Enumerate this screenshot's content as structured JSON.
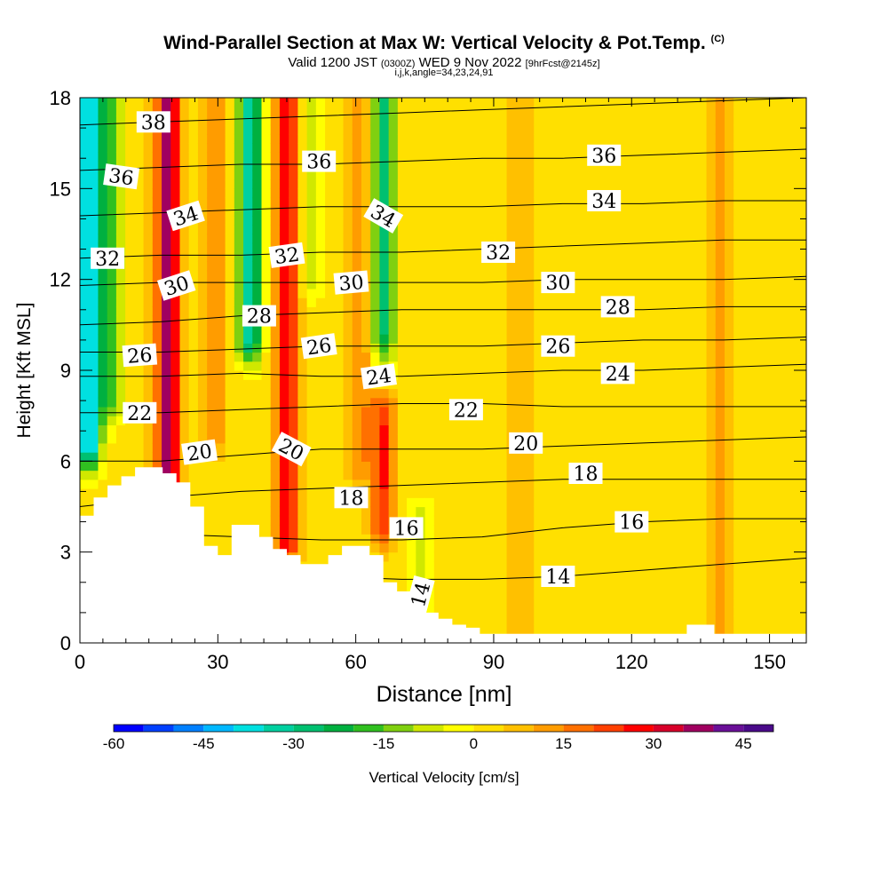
{
  "header": {
    "title": "Wind-Parallel Section at Max W: Vertical Velocity & Pot.Temp.",
    "title_mark": "(C)",
    "valid_prefix": "Valid 1200 JST",
    "valid_utc": "(0300Z)",
    "valid_date": "WED 9 Nov 2022",
    "forecast": "[9hrFcst@2145z]",
    "indices": "i,j,k,angle=34,23,24,91"
  },
  "chart_data": {
    "type": "heatmap",
    "xlabel": "Distance [nm]",
    "ylabel": "Height [Kft MSL]",
    "xlim": [
      0,
      158
    ],
    "ylim": [
      0,
      18
    ],
    "xticks": [
      0,
      30,
      60,
      90,
      120,
      150
    ],
    "xtick_labels": [
      "0",
      "30",
      "60",
      "90",
      "120",
      "150"
    ],
    "yticks": [
      0,
      3,
      6,
      9,
      12,
      15,
      18
    ],
    "ytick_labels": [
      "0",
      "3",
      "6",
      "9",
      "12",
      "15",
      "18"
    ],
    "colorbar": {
      "label": "Vertical Velocity [cm/s]",
      "min": -60,
      "max": 50,
      "step": 5,
      "tick_values": [
        -60,
        -45,
        -30,
        -15,
        0,
        15,
        30,
        45
      ],
      "tick_labels": [
        "-60",
        "-45",
        "-30",
        "-15",
        "0",
        "15",
        "30",
        "45"
      ],
      "colors": [
        "#0000ff",
        "#0040ff",
        "#0080ff",
        "#00b8ff",
        "#00e0e0",
        "#00d0a0",
        "#00c070",
        "#00b040",
        "#30c020",
        "#80d010",
        "#d0e800",
        "#ffff00",
        "#ffe000",
        "#ffc000",
        "#ff9c00",
        "#ff7000",
        "#ff4000",
        "#ff0000",
        "#d8002a",
        "#a00060",
        "#6a1098",
        "#4a0a8a"
      ]
    },
    "vertical_velocity_features": [
      {
        "x": 2,
        "z_range": [
          6.5,
          18
        ],
        "w": -45
      },
      {
        "x": 7,
        "z_range": [
          8,
          18
        ],
        "w": -20
      },
      {
        "x": 19,
        "z_range": [
          5,
          18
        ],
        "w": 35
      },
      {
        "x": 29,
        "z_range": [
          7,
          18
        ],
        "w": 12
      },
      {
        "x": 37,
        "z_range": [
          10,
          18
        ],
        "w": -35
      },
      {
        "x": 45,
        "z_range": [
          3.5,
          18
        ],
        "w": 28
      },
      {
        "x": 50,
        "z_range": [
          12,
          18
        ],
        "w": -10
      },
      {
        "x": 61,
        "z_range": [
          6,
          18
        ],
        "w": 12
      },
      {
        "x": 66,
        "z_range": [
          9,
          18
        ],
        "w": -32
      },
      {
        "x": 66,
        "z_range": [
          4,
          9
        ],
        "w": 22
      },
      {
        "x": 74,
        "z_range": [
          0.5,
          4
        ],
        "w": -12
      },
      {
        "x": 95,
        "z_range": [
          0.5,
          18
        ],
        "w": 7
      },
      {
        "x": 140,
        "z_range": [
          0.5,
          18
        ],
        "w": 8
      }
    ],
    "theta_contours": [
      {
        "level": 14,
        "z": [
          3.0,
          2.8,
          2.5,
          2.2,
          2.1,
          2.1,
          2.2,
          2.4,
          2.6,
          2.8
        ]
      },
      {
        "level": 16,
        "z": [
          3.6,
          3.6,
          3.5,
          3.4,
          3.4,
          3.5,
          3.8,
          4.0,
          4.1,
          4.1
        ]
      },
      {
        "level": 18,
        "z": [
          4.5,
          4.8,
          5.0,
          5.1,
          5.2,
          5.3,
          5.4,
          5.4,
          5.4,
          5.4
        ]
      },
      {
        "level": 20,
        "z": [
          6.0,
          6.0,
          6.2,
          6.4,
          6.4,
          6.4,
          6.5,
          6.6,
          6.7,
          6.8
        ]
      },
      {
        "level": 22,
        "z": [
          7.6,
          7.6,
          7.7,
          7.8,
          7.9,
          7.9,
          7.8,
          7.8,
          7.8,
          7.8
        ]
      },
      {
        "level": 24,
        "z": [
          8.8,
          8.8,
          8.9,
          8.8,
          8.8,
          8.9,
          9.0,
          9.0,
          9.1,
          9.2
        ]
      },
      {
        "level": 26,
        "z": [
          9.6,
          9.6,
          9.7,
          9.8,
          9.8,
          9.8,
          9.9,
          10.0,
          10.0,
          10.1
        ]
      },
      {
        "level": 28,
        "z": [
          10.5,
          10.6,
          10.8,
          10.9,
          11.0,
          11.0,
          11.0,
          11.0,
          11.1,
          11.1
        ]
      },
      {
        "level": 30,
        "z": [
          11.8,
          11.9,
          11.9,
          11.9,
          11.9,
          11.9,
          12.0,
          12.0,
          12.0,
          12.1
        ]
      },
      {
        "level": 32,
        "z": [
          12.7,
          12.8,
          12.8,
          12.9,
          12.9,
          13.0,
          13.1,
          13.2,
          13.3,
          13.3
        ]
      },
      {
        "level": 34,
        "z": [
          14.1,
          14.2,
          14.3,
          14.4,
          14.4,
          14.4,
          14.5,
          14.5,
          14.6,
          14.6
        ]
      },
      {
        "level": 36,
        "z": [
          15.6,
          15.7,
          15.8,
          15.8,
          15.9,
          16.0,
          16.0,
          16.1,
          16.2,
          16.3
        ]
      },
      {
        "level": 38,
        "z": [
          17.1,
          17.2,
          17.3,
          17.4,
          17.5,
          17.6,
          17.7,
          17.8,
          17.9,
          18.0
        ]
      }
    ],
    "contour_x": [
      0,
      17.5,
      35,
      52.5,
      70,
      87.5,
      105,
      122.5,
      140,
      158
    ],
    "contour_labels": [
      {
        "text": "38",
        "x": 16,
        "z": 17.2,
        "angle": 0
      },
      {
        "text": "36",
        "x": 9,
        "z": 15.4,
        "angle": 8
      },
      {
        "text": "36",
        "x": 52,
        "z": 15.9,
        "angle": 0
      },
      {
        "text": "36",
        "x": 114,
        "z": 16.1,
        "angle": 0
      },
      {
        "text": "34",
        "x": 23,
        "z": 14.1,
        "angle": -18
      },
      {
        "text": "34",
        "x": 66,
        "z": 14.1,
        "angle": 30
      },
      {
        "text": "34",
        "x": 114,
        "z": 14.6,
        "angle": 0
      },
      {
        "text": "32",
        "x": 6,
        "z": 12.7,
        "angle": 0
      },
      {
        "text": "32",
        "x": 45,
        "z": 12.8,
        "angle": -8
      },
      {
        "text": "32",
        "x": 91,
        "z": 12.9,
        "angle": 0
      },
      {
        "text": "30",
        "x": 21,
        "z": 11.8,
        "angle": -18
      },
      {
        "text": "30",
        "x": 59,
        "z": 11.9,
        "angle": -5
      },
      {
        "text": "30",
        "x": 104,
        "z": 11.9,
        "angle": 0
      },
      {
        "text": "28",
        "x": 39,
        "z": 10.8,
        "angle": 0
      },
      {
        "text": "28",
        "x": 117,
        "z": 11.1,
        "angle": 0
      },
      {
        "text": "26",
        "x": 13,
        "z": 9.5,
        "angle": -4
      },
      {
        "text": "26",
        "x": 52,
        "z": 9.8,
        "angle": -8
      },
      {
        "text": "26",
        "x": 104,
        "z": 9.8,
        "angle": 0
      },
      {
        "text": "24",
        "x": 65,
        "z": 8.8,
        "angle": -8
      },
      {
        "text": "24",
        "x": 117,
        "z": 8.9,
        "angle": 0
      },
      {
        "text": "22",
        "x": 13,
        "z": 7.6,
        "angle": 0
      },
      {
        "text": "22",
        "x": 84,
        "z": 7.7,
        "angle": 0
      },
      {
        "text": "20",
        "x": 26,
        "z": 6.3,
        "angle": -8
      },
      {
        "text": "20",
        "x": 46,
        "z": 6.4,
        "angle": 28
      },
      {
        "text": "20",
        "x": 97,
        "z": 6.6,
        "angle": 0
      },
      {
        "text": "18",
        "x": 110,
        "z": 5.6,
        "angle": 0
      },
      {
        "text": "18",
        "x": 59,
        "z": 4.8,
        "angle": 0
      },
      {
        "text": "16",
        "x": 120,
        "z": 4.0,
        "angle": 0
      },
      {
        "text": "16",
        "x": 71,
        "z": 3.8,
        "angle": 0
      },
      {
        "text": "14",
        "x": 104,
        "z": 2.2,
        "angle": 0
      },
      {
        "text": "14",
        "x": 74,
        "z": 1.6,
        "angle": -75
      }
    ],
    "terrain": {
      "x": [
        0,
        3,
        3,
        6,
        6,
        9,
        9,
        12,
        12,
        15,
        15,
        18,
        18,
        21,
        21,
        24,
        24,
        27,
        27,
        30,
        30,
        33,
        33,
        39,
        39,
        42,
        42,
        45,
        45,
        48,
        48,
        51,
        51,
        54,
        54,
        57,
        57,
        60,
        60,
        63,
        63,
        66,
        66,
        69,
        69,
        72,
        72,
        75,
        75,
        78,
        78,
        81,
        81,
        84,
        84,
        87,
        87,
        90,
        90,
        132,
        132,
        138,
        138,
        158
      ],
      "z": [
        4.2,
        4.2,
        4.8,
        4.8,
        5.2,
        5.2,
        5.5,
        5.5,
        5.8,
        5.8,
        5.8,
        5.8,
        5.6,
        5.6,
        5.3,
        5.3,
        4.5,
        4.5,
        3.2,
        3.2,
        2.9,
        2.9,
        3.9,
        3.9,
        3.5,
        3.5,
        3.1,
        3.1,
        2.9,
        2.9,
        2.6,
        2.6,
        2.6,
        2.6,
        2.9,
        2.9,
        3.2,
        3.2,
        3.2,
        3.2,
        2.9,
        2.9,
        2.0,
        2.0,
        1.7,
        1.7,
        1.2,
        1.2,
        1.0,
        1.0,
        0.8,
        0.8,
        0.6,
        0.6,
        0.5,
        0.5,
        0.3,
        0.3,
        0.3,
        0.3,
        0.6,
        0.6,
        0.3,
        0.3
      ]
    }
  }
}
